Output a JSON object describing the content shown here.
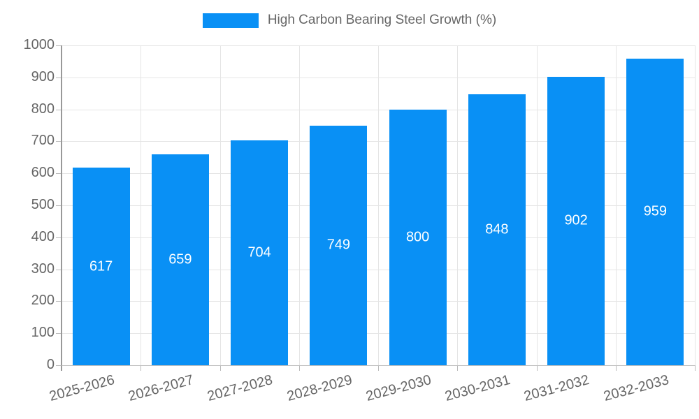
{
  "legend": {
    "label": "High Carbon Bearing Steel Growth (%)"
  },
  "chart_data": {
    "type": "bar",
    "title": "",
    "xlabel": "",
    "ylabel": "",
    "categories": [
      "2025-2026",
      "2026-2027",
      "2027-2028",
      "2028-2029",
      "2029-2030",
      "2030-2031",
      "2031-2032",
      "2032-2033"
    ],
    "series": [
      {
        "name": "High Carbon Bearing Steel Growth (%)",
        "values": [
          617,
          659,
          704,
          749,
          800,
          848,
          902,
          959
        ]
      }
    ],
    "value_labels": [
      "617",
      "659",
      "704",
      "749",
      "800",
      "848",
      "902",
      "959"
    ],
    "ylim": [
      0,
      1000
    ],
    "yticks": [
      0,
      100,
      200,
      300,
      400,
      500,
      600,
      700,
      800,
      900,
      1000
    ],
    "grid": true,
    "legend_position": "top-center",
    "x_label_rotation_deg": -15,
    "colors": {
      "bar": "#0990f5",
      "value_label": "#ffffff",
      "axis_text": "#666666",
      "gridline": "#e5e5e5",
      "y_axis_line": "#999999",
      "x_axis_line": "#c0c0c0"
    }
  }
}
